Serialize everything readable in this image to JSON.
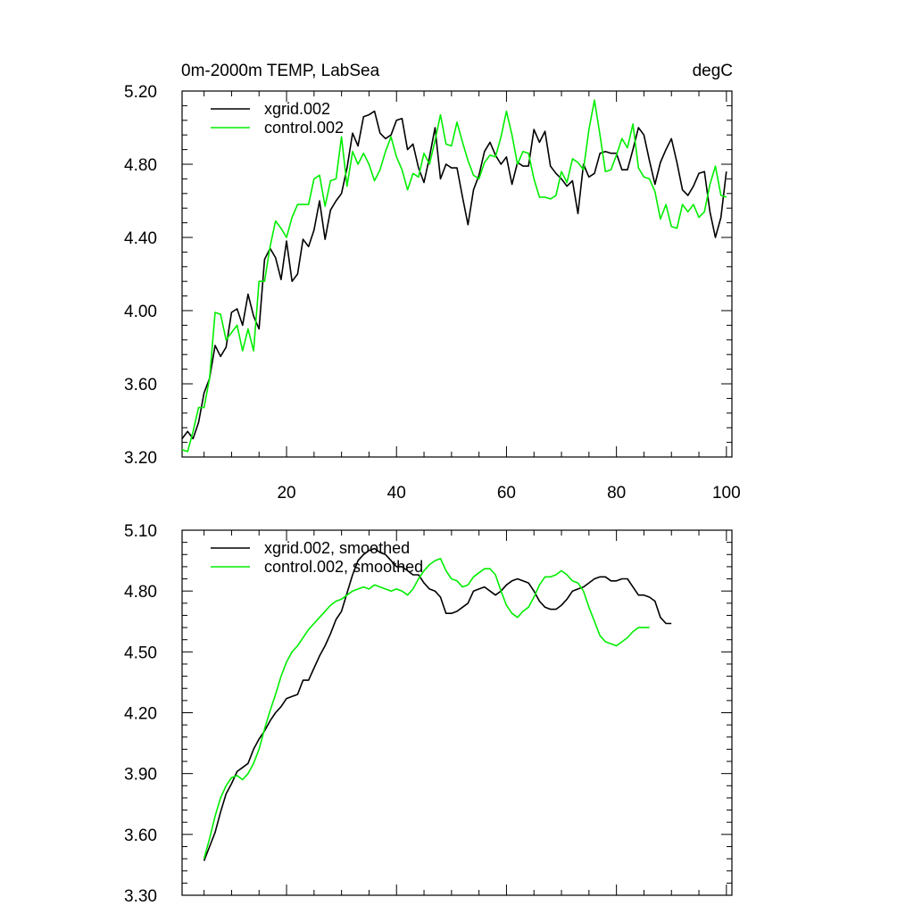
{
  "title_left": "0m-2000m TEMP, LabSea",
  "title_right": "degC",
  "colors": {
    "series1": "#000000",
    "series2": "#00ee00",
    "axis": "#000000",
    "background": "#ffffff"
  },
  "chart_data": [
    {
      "type": "line",
      "title": "0m-2000m TEMP, LabSea",
      "units": "degC",
      "xlabel": "",
      "ylabel": "",
      "xlim": [
        1,
        101
      ],
      "ylim": [
        3.2,
        5.2
      ],
      "xticks": [
        20,
        40,
        60,
        80,
        100
      ],
      "yticks": [
        3.2,
        3.6,
        4.0,
        4.4,
        4.8,
        5.2
      ],
      "ytick_labels": [
        "3.20",
        "3.60",
        "4.00",
        "4.40",
        "4.80",
        "5.20"
      ],
      "xtick_labels": [
        "20",
        "40",
        "60",
        "80",
        "100"
      ],
      "legend_position": "top-left",
      "x_start": 1,
      "series": [
        {
          "name": "xgrid.002",
          "color": "#000000",
          "values": [
            3.3,
            3.34,
            3.3,
            3.39,
            3.55,
            3.63,
            3.81,
            3.75,
            3.8,
            3.99,
            4.01,
            3.92,
            4.09,
            3.97,
            3.9,
            4.28,
            4.34,
            4.29,
            4.17,
            4.38,
            4.16,
            4.2,
            4.39,
            4.35,
            4.44,
            4.6,
            4.39,
            4.55,
            4.6,
            4.64,
            4.78,
            4.97,
            4.9,
            5.06,
            5.07,
            5.09,
            4.97,
            4.94,
            4.96,
            5.04,
            5.05,
            4.88,
            4.91,
            4.78,
            4.7,
            4.84,
            5.0,
            4.72,
            4.8,
            4.78,
            4.78,
            4.62,
            4.47,
            4.66,
            4.74,
            4.87,
            4.92,
            4.85,
            4.8,
            4.84,
            4.69,
            4.81,
            4.79,
            4.79,
            4.99,
            4.92,
            4.98,
            4.79,
            4.75,
            4.72,
            4.68,
            4.71,
            4.53,
            4.8,
            4.73,
            4.75,
            4.86,
            4.87,
            4.86,
            4.86,
            4.77,
            4.77,
            4.88,
            5.0,
            4.96,
            4.82,
            4.69,
            4.81,
            4.88,
            4.94,
            4.81,
            4.66,
            4.63,
            4.68,
            4.75,
            4.76,
            4.54,
            4.4,
            4.51,
            4.76
          ]
        },
        {
          "name": "control.002",
          "color": "#00ee00",
          "values": [
            3.24,
            3.23,
            3.34,
            3.47,
            3.47,
            3.63,
            3.99,
            3.98,
            3.84,
            3.88,
            3.92,
            3.78,
            3.9,
            3.78,
            4.16,
            4.16,
            4.35,
            4.49,
            4.45,
            4.4,
            4.51,
            4.58,
            4.58,
            4.58,
            4.72,
            4.74,
            4.57,
            4.71,
            4.72,
            4.95,
            4.68,
            4.87,
            4.8,
            4.86,
            4.8,
            4.71,
            4.77,
            4.87,
            4.95,
            4.84,
            4.77,
            4.66,
            4.75,
            4.73,
            4.86,
            4.8,
            4.93,
            5.07,
            4.91,
            4.9,
            5.03,
            4.92,
            4.82,
            4.74,
            4.72,
            4.81,
            4.85,
            4.84,
            4.95,
            5.09,
            4.96,
            4.8,
            4.87,
            4.86,
            4.72,
            4.62,
            4.62,
            4.61,
            4.63,
            4.76,
            4.7,
            4.83,
            4.81,
            4.77,
            4.99,
            5.15,
            4.96,
            4.76,
            4.77,
            4.85,
            4.94,
            4.89,
            5.02,
            4.78,
            4.73,
            4.72,
            4.65,
            4.5,
            4.58,
            4.46,
            4.45,
            4.58,
            4.54,
            4.58,
            4.51,
            4.54,
            4.69,
            4.79,
            4.63,
            4.62
          ]
        }
      ]
    },
    {
      "type": "line",
      "title": "",
      "xlabel": "",
      "ylabel": "",
      "xlim": [
        1,
        101
      ],
      "ylim": [
        3.3,
        5.1
      ],
      "xticks": [
        20,
        40,
        60,
        80,
        100
      ],
      "yticks": [
        3.3,
        3.6,
        3.9,
        4.2,
        4.5,
        4.8,
        5.1
      ],
      "ytick_labels": [
        "3.30",
        "3.60",
        "3.90",
        "4.20",
        "4.50",
        "4.80",
        "5.10"
      ],
      "xtick_labels": [],
      "legend_position": "top-left",
      "x_start": 5,
      "series": [
        {
          "name": "xgrid.002, smoothed",
          "color": "#000000",
          "values": [
            3.47,
            3.54,
            3.61,
            3.71,
            3.8,
            3.85,
            3.91,
            3.93,
            3.95,
            4.02,
            4.07,
            4.11,
            4.16,
            4.2,
            4.23,
            4.27,
            4.28,
            4.29,
            4.36,
            4.36,
            4.42,
            4.48,
            4.53,
            4.59,
            4.66,
            4.7,
            4.79,
            4.88,
            4.95,
            4.98,
            5.0,
            5.01,
            4.99,
            4.98,
            4.95,
            4.92,
            4.92,
            4.9,
            4.88,
            4.88,
            4.84,
            4.81,
            4.8,
            4.77,
            4.69,
            4.69,
            4.7,
            4.72,
            4.74,
            4.8,
            4.81,
            4.82,
            4.8,
            4.78,
            4.8,
            4.83,
            4.85,
            4.86,
            4.85,
            4.84,
            4.8,
            4.75,
            4.72,
            4.71,
            4.71,
            4.73,
            4.76,
            4.8,
            4.81,
            4.82,
            4.84,
            4.86,
            4.87,
            4.87,
            4.85,
            4.85,
            4.86,
            4.86,
            4.82,
            4.78,
            4.78,
            4.77,
            4.75,
            4.67,
            4.64,
            4.64
          ]
        },
        {
          "name": "control.002, smoothed",
          "color": "#00ee00",
          "values": [
            3.48,
            3.58,
            3.69,
            3.78,
            3.84,
            3.88,
            3.89,
            3.87,
            3.9,
            3.95,
            4.02,
            4.12,
            4.21,
            4.29,
            4.38,
            4.45,
            4.5,
            4.53,
            4.57,
            4.61,
            4.64,
            4.67,
            4.7,
            4.73,
            4.75,
            4.76,
            4.78,
            4.8,
            4.81,
            4.82,
            4.81,
            4.83,
            4.82,
            4.81,
            4.8,
            4.81,
            4.8,
            4.78,
            4.81,
            4.86,
            4.9,
            4.93,
            4.95,
            4.96,
            4.9,
            4.86,
            4.85,
            4.82,
            4.83,
            4.87,
            4.89,
            4.91,
            4.91,
            4.88,
            4.8,
            4.73,
            4.69,
            4.67,
            4.7,
            4.72,
            4.77,
            4.83,
            4.87,
            4.87,
            4.88,
            4.9,
            4.88,
            4.85,
            4.84,
            4.8,
            4.72,
            4.65,
            4.58,
            4.55,
            4.54,
            4.53,
            4.55,
            4.57,
            4.6,
            4.62,
            4.62,
            4.62
          ]
        }
      ]
    }
  ]
}
